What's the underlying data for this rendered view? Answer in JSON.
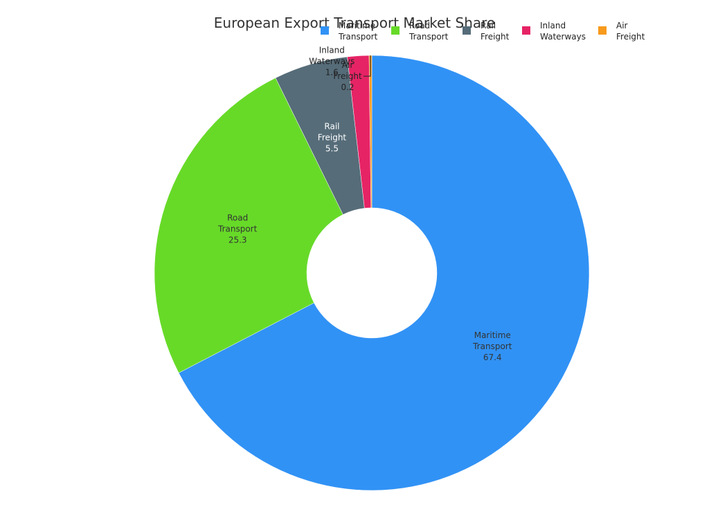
{
  "chart_data": {
    "type": "pie",
    "donut": true,
    "title": "European Export Transport Market Share",
    "legend_position": "top-right",
    "categories": [
      "Maritime Transport",
      "Road Transport",
      "Rail Freight",
      "Inland Waterways",
      "Air Freight"
    ],
    "values": [
      67.4,
      25.3,
      5.5,
      1.6,
      0.2
    ],
    "colors": [
      "#3192f5",
      "#67da28",
      "#566c79",
      "#e62465",
      "#f89a1c"
    ],
    "label_colors": [
      "#333333",
      "#333333",
      "#ffffff",
      "#222222",
      "#222222"
    ]
  }
}
